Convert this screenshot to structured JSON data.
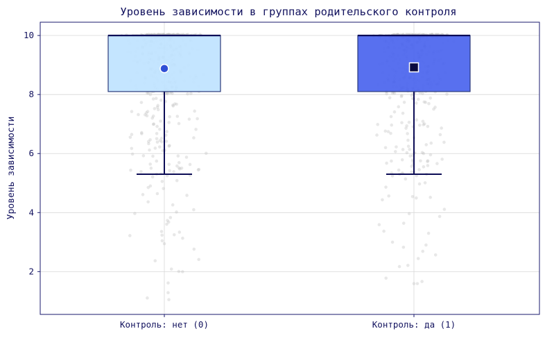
{
  "chart_data": {
    "type": "box",
    "title": "Уровень зависимости в группах родительского контроля",
    "xlabel": "",
    "ylabel": "Уровень зависимости",
    "ylim": [
      0.55,
      10.45
    ],
    "yticks": [
      2,
      4,
      6,
      8,
      10
    ],
    "grid": true,
    "categories": [
      "Контроль: нет (0)",
      "Контроль: да (1)"
    ],
    "groups": [
      {
        "category": "Контроль: нет (0)",
        "whisker_low": 5.3,
        "q1": 8.1,
        "median": 10.0,
        "q3": 10.0,
        "whisker_high": 10.0,
        "mean": 8.88,
        "mean_marker": "circle",
        "box_color": "#bfe3ff",
        "mean_color": "#2f4fd6",
        "points_low_range": [
          1.0,
          10.0
        ]
      },
      {
        "category": "Контроль: да (1)",
        "whisker_low": 5.3,
        "q1": 8.1,
        "median": 10.0,
        "q3": 10.0,
        "whisker_high": 10.0,
        "mean": 8.92,
        "mean_marker": "square",
        "box_color": "#4a64ee",
        "mean_color": "#0b0b40",
        "points_low_range": [
          1.4,
          10.0
        ]
      }
    ]
  }
}
